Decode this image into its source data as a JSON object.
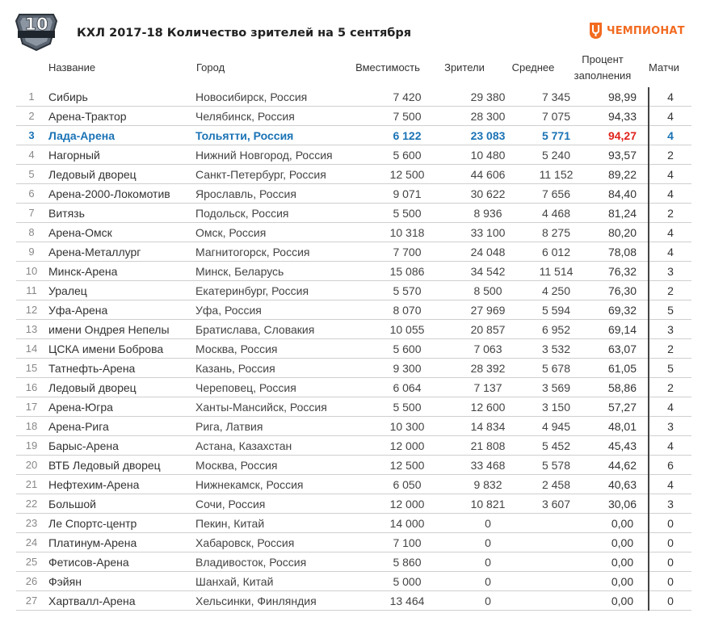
{
  "header": {
    "title": "КХЛ 2017-18 Количество зрителей на 5 сентября",
    "logo_number": "10",
    "brand_label": "ЧЕМПИОНАТ"
  },
  "columns": {
    "name": "Название",
    "city": "Город",
    "capacity": "Вместимость",
    "attendance": "Зрители",
    "average": "Среднее",
    "percent_line1": "Процент",
    "percent_line2": "заполнения",
    "matches": "Матчи"
  },
  "colors": {
    "highlight_text": "#1a73b5",
    "highlight_percent": "#e0231c",
    "brand": "#f26b21"
  },
  "highlight_rank": "3",
  "rows": [
    {
      "rank": "1",
      "name": "Сибирь",
      "city": "Новосибирск, Россия",
      "capacity": "7 420",
      "attendance": "29 380",
      "average": "7 345",
      "percent": "98,99",
      "matches": "4"
    },
    {
      "rank": "2",
      "name": "Арена-Трактор",
      "city": "Челябинск, Россия",
      "capacity": "7 500",
      "attendance": "28 300",
      "average": "7 075",
      "percent": "94,33",
      "matches": "4"
    },
    {
      "rank": "3",
      "name": "Лада-Арена",
      "city": "Тольятти, Россия",
      "capacity": "6 122",
      "attendance": "23 083",
      "average": "5 771",
      "percent": "94,27",
      "matches": "4"
    },
    {
      "rank": "4",
      "name": "Нагорный",
      "city": "Нижний Новгород, Россия",
      "capacity": "5 600",
      "attendance": "10 480",
      "average": "5 240",
      "percent": "93,57",
      "matches": "2"
    },
    {
      "rank": "5",
      "name": "Ледовый дворец",
      "city": "Санкт-Петербург, Россия",
      "capacity": "12 500",
      "attendance": "44 606",
      "average": "11 152",
      "percent": "89,22",
      "matches": "4"
    },
    {
      "rank": "6",
      "name": "Арена-2000-Локомотив",
      "city": "Ярославль, Россия",
      "capacity": "9 071",
      "attendance": "30 622",
      "average": "7 656",
      "percent": "84,40",
      "matches": "4"
    },
    {
      "rank": "7",
      "name": "Витязь",
      "city": "Подольск, Россия",
      "capacity": "5 500",
      "attendance": "8 936",
      "average": "4 468",
      "percent": "81,24",
      "matches": "2"
    },
    {
      "rank": "8",
      "name": "Арена-Омск",
      "city": "Омск, Россия",
      "capacity": "10 318",
      "attendance": "33 100",
      "average": "8 275",
      "percent": "80,20",
      "matches": "4"
    },
    {
      "rank": "9",
      "name": "Арена-Металлург",
      "city": "Магнитогорск, Россия",
      "capacity": "7 700",
      "attendance": "24 048",
      "average": "6 012",
      "percent": "78,08",
      "matches": "4"
    },
    {
      "rank": "10",
      "name": "Минск-Арена",
      "city": "Минск, Беларусь",
      "capacity": "15 086",
      "attendance": "34 542",
      "average": "11 514",
      "percent": "76,32",
      "matches": "3"
    },
    {
      "rank": "11",
      "name": "Уралец",
      "city": "Екатеринбург, Россия",
      "capacity": "5 570",
      "attendance": "8 500",
      "average": "4 250",
      "percent": "76,30",
      "matches": "2"
    },
    {
      "rank": "12",
      "name": "Уфа-Арена",
      "city": "Уфа, Россия",
      "capacity": "8 070",
      "attendance": "27 969",
      "average": "5 594",
      "percent": "69,32",
      "matches": "5"
    },
    {
      "rank": "13",
      "name": "имени Ондрея Непелы",
      "city": "Братислава, Словакия",
      "capacity": "10 055",
      "attendance": "20 857",
      "average": "6 952",
      "percent": "69,14",
      "matches": "3"
    },
    {
      "rank": "14",
      "name": "ЦСКА имени Боброва",
      "city": "Москва, Россия",
      "capacity": "5 600",
      "attendance": "7 063",
      "average": "3 532",
      "percent": "63,07",
      "matches": "2"
    },
    {
      "rank": "15",
      "name": "Татнефть-Арена",
      "city": "Казань, Россия",
      "capacity": "9 300",
      "attendance": "28 392",
      "average": "5 678",
      "percent": "61,05",
      "matches": "5"
    },
    {
      "rank": "16",
      "name": "Ледовый дворец",
      "city": "Череповец, Россия",
      "capacity": "6 064",
      "attendance": "7 137",
      "average": "3 569",
      "percent": "58,86",
      "matches": "2"
    },
    {
      "rank": "17",
      "name": "Арена-Югра",
      "city": "Ханты-Мансийск, Россия",
      "capacity": "5 500",
      "attendance": "12 600",
      "average": "3 150",
      "percent": "57,27",
      "matches": "4"
    },
    {
      "rank": "18",
      "name": "Арена-Рига",
      "city": "Рига, Латвия",
      "capacity": "10 300",
      "attendance": "14 834",
      "average": "4 945",
      "percent": "48,01",
      "matches": "3"
    },
    {
      "rank": "19",
      "name": "Барыс-Арена",
      "city": "Астана, Казахстан",
      "capacity": "12 000",
      "attendance": "21 808",
      "average": "5 452",
      "percent": "45,43",
      "matches": "4"
    },
    {
      "rank": "20",
      "name": "ВТБ Ледовый дворец",
      "city": "Москва, Россия",
      "capacity": "12 500",
      "attendance": "33 468",
      "average": "5 578",
      "percent": "44,62",
      "matches": "6"
    },
    {
      "rank": "21",
      "name": "Нефтехим-Арена",
      "city": "Нижнекамск, Россия",
      "capacity": "6 050",
      "attendance": "9 832",
      "average": "2 458",
      "percent": "40,63",
      "matches": "4"
    },
    {
      "rank": "22",
      "name": "Большой",
      "city": "Сочи, Россия",
      "capacity": "12 000",
      "attendance": "10 821",
      "average": "3 607",
      "percent": "30,06",
      "matches": "3"
    },
    {
      "rank": "23",
      "name": "Ле Спортс-центр",
      "city": "Пекин, Китай",
      "capacity": "14 000",
      "attendance": "0",
      "average": "",
      "percent": "0,00",
      "matches": "0"
    },
    {
      "rank": "24",
      "name": "Платинум-Арена",
      "city": "Хабаровск, Россия",
      "capacity": "7 100",
      "attendance": "0",
      "average": "",
      "percent": "0,00",
      "matches": "0"
    },
    {
      "rank": "25",
      "name": "Фетисов-Арена",
      "city": "Владивосток, Россия",
      "capacity": "5 860",
      "attendance": "0",
      "average": "",
      "percent": "0,00",
      "matches": "0"
    },
    {
      "rank": "26",
      "name": "Фэйян",
      "city": "Шанхай, Китай",
      "capacity": "5 000",
      "attendance": "0",
      "average": "",
      "percent": "0,00",
      "matches": "0"
    },
    {
      "rank": "27",
      "name": "Хартвалл-Арена",
      "city": "Хельсинки, Финляндия",
      "capacity": "13 464",
      "attendance": "0",
      "average": "",
      "percent": "0,00",
      "matches": "0"
    }
  ]
}
